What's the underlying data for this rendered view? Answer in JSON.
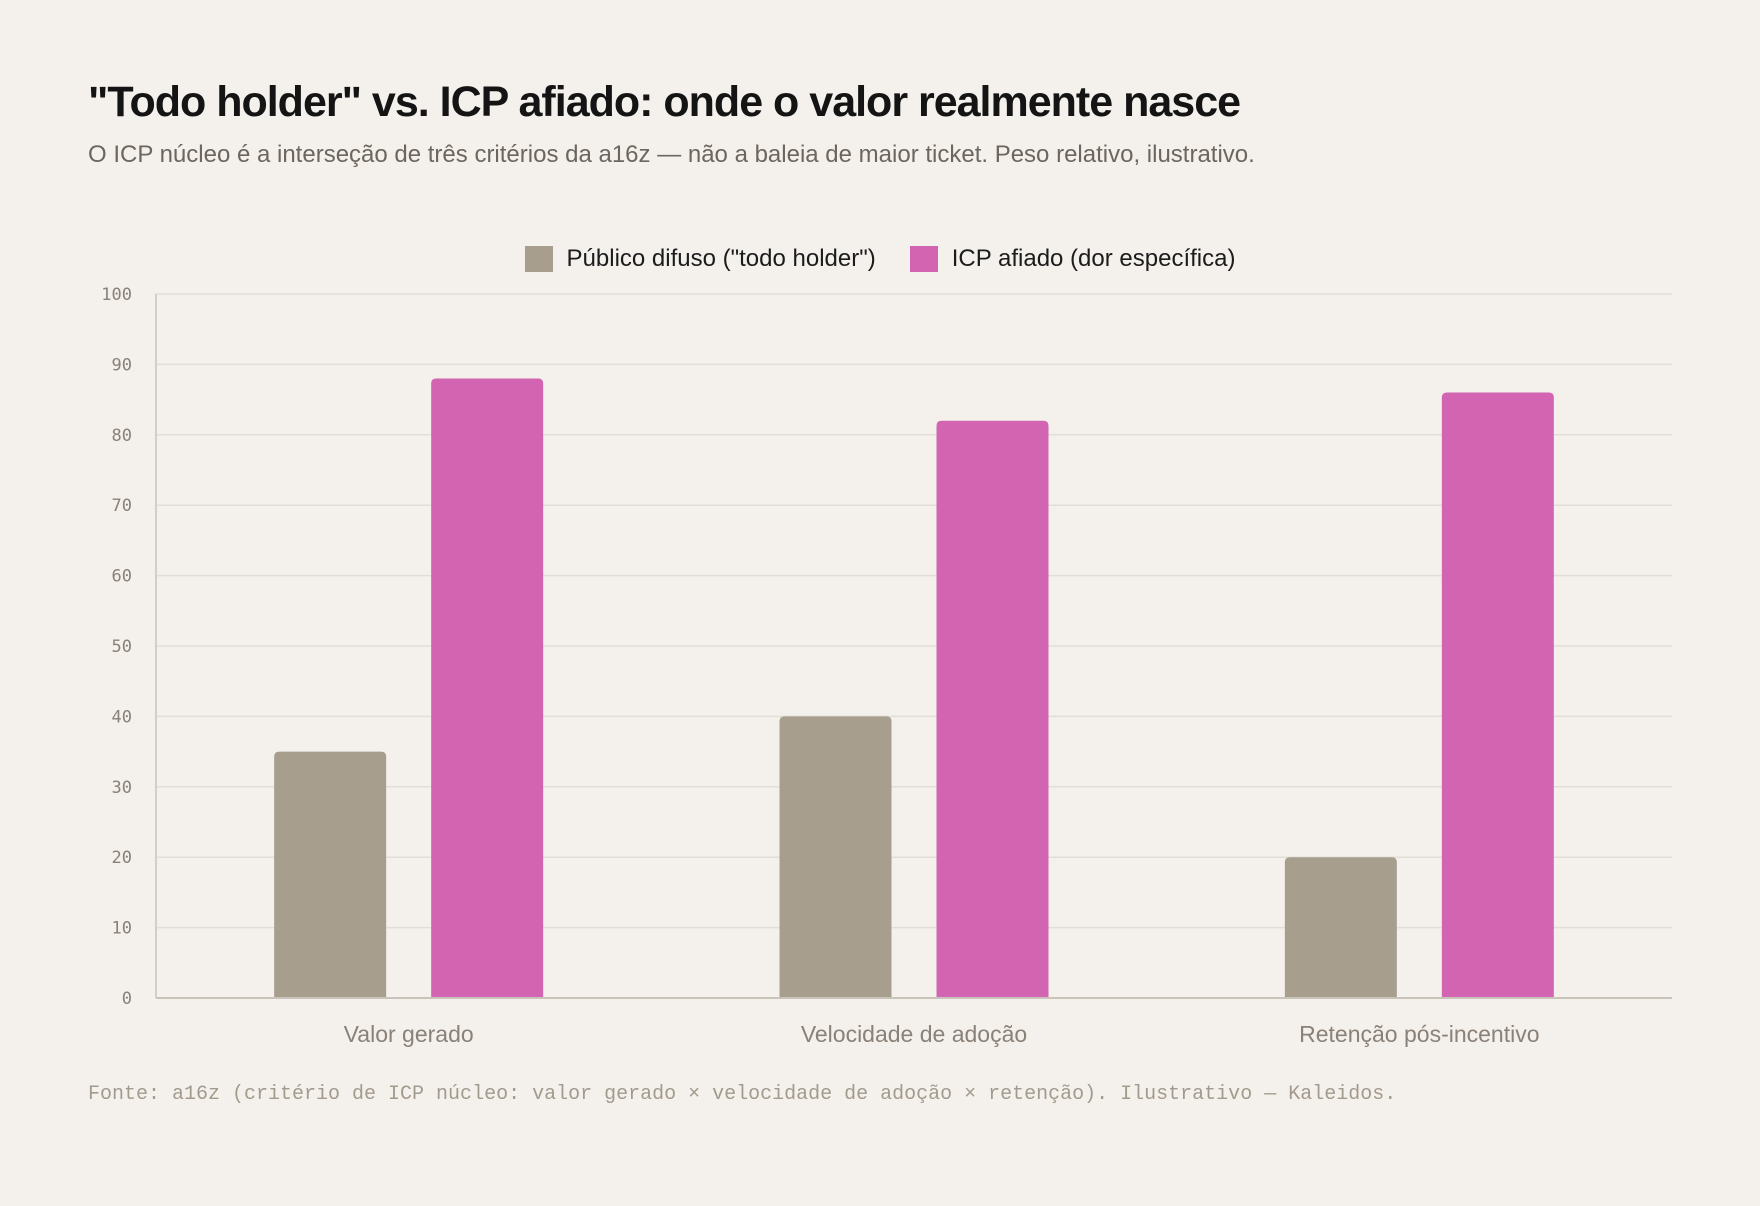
{
  "colors": {
    "background": "#f4f1ec",
    "grid": "#e2ddd6",
    "axis": "#c9c3ba",
    "tick_text": "#8a8178",
    "series_diffuse": "#a89e8e",
    "series_icp": "#d264b2"
  },
  "chart_data": {
    "type": "bar",
    "title": "\"Todo holder\" vs. ICP afiado: onde o valor realmente nasce",
    "subtitle": "O ICP núcleo é a interseção de três critérios da a16z — não a baleia de maior ticket. Peso relativo, ilustrativo.",
    "categories": [
      "Valor gerado",
      "Velocidade de adoção",
      "Retenção pós-incentivo"
    ],
    "series": [
      {
        "name": "Público difuso (\"todo holder\")",
        "values": [
          35,
          40,
          20
        ],
        "color": "#a89e8e"
      },
      {
        "name": "ICP afiado (dor específica)",
        "values": [
          88,
          82,
          86
        ],
        "color": "#d264b2"
      }
    ],
    "ylim": [
      0,
      100
    ],
    "yticks": [
      0,
      10,
      20,
      30,
      40,
      50,
      60,
      70,
      80,
      90,
      100
    ],
    "grid": true,
    "legend_position": "top-center",
    "xlabel": "",
    "ylabel": "",
    "source": "Fonte: a16z (critério de ICP núcleo: valor gerado × velocidade de adoção × retenção). Ilustrativo — Kaleidos."
  }
}
